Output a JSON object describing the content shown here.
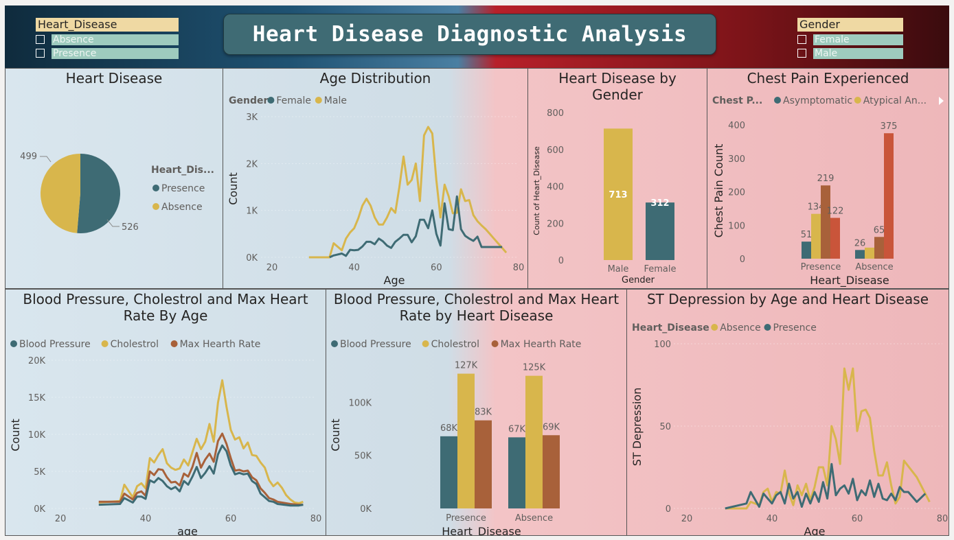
{
  "header": {
    "title": "Heart Disease Diagnostic Analysis"
  },
  "slicers": {
    "heart_disease": {
      "title": "Heart_Disease",
      "options": [
        "Absence",
        "Presence"
      ]
    },
    "gender": {
      "title": "Gender",
      "options": [
        "Female",
        "Male"
      ]
    }
  },
  "colors": {
    "teal": "#3e6b74",
    "gold": "#d8b64c",
    "brown": "#a8613a",
    "orange": "#c9553a"
  },
  "panels": {
    "pie": {
      "title": "Heart Disease"
    },
    "age": {
      "title": "Age Distribution"
    },
    "gender": {
      "title": "Heart Disease by Gender"
    },
    "chest": {
      "title": "Chest Pain Experienced"
    },
    "bpage": {
      "title": "Blood Pressure, Cholestrol and Max Heart Rate By Age"
    },
    "bphd": {
      "title": "Blood Pressure, Cholestrol and Max Heart Rate by Heart Disease"
    },
    "st": {
      "title": "ST Depression by Age and Heart Disease"
    }
  },
  "chart_data": [
    {
      "id": "pie",
      "type": "pie",
      "legend_title": "Heart_Dis...",
      "labels": [
        "Presence",
        "Absence"
      ],
      "values": [
        526,
        499
      ]
    },
    {
      "id": "age",
      "type": "line",
      "legend_title": "Gender",
      "xlabel": "Age",
      "ylabel": "Count",
      "xlim": [
        20,
        80
      ],
      "ylim": [
        0,
        3000
      ],
      "xticks": [
        "20",
        "40",
        "60",
        "80"
      ],
      "yticks": [
        "0K",
        "1K",
        "2K",
        "3K"
      ],
      "series": [
        {
          "name": "Female",
          "x": [
            34,
            35,
            37,
            38,
            39,
            40,
            41,
            42,
            43,
            44,
            45,
            46,
            47,
            48,
            49,
            50,
            51,
            52,
            53,
            54,
            55,
            56,
            57,
            58,
            59,
            60,
            61,
            62,
            63,
            64,
            65,
            66,
            67,
            68,
            69,
            70,
            71,
            74,
            76
          ],
          "y": [
            0,
            40,
            80,
            30,
            160,
            150,
            160,
            230,
            330,
            330,
            280,
            400,
            340,
            250,
            200,
            330,
            400,
            480,
            480,
            320,
            450,
            800,
            800,
            620,
            1000,
            500,
            250,
            1150,
            600,
            580,
            1300,
            600,
            460,
            400,
            350,
            440,
            220,
            220,
            220
          ]
        },
        {
          "name": "Male",
          "x": [
            29,
            34,
            35,
            37,
            38,
            39,
            40,
            41,
            42,
            43,
            44,
            45,
            46,
            47,
            48,
            49,
            50,
            51,
            52,
            53,
            54,
            55,
            56,
            57,
            58,
            59,
            60,
            61,
            62,
            63,
            64,
            65,
            66,
            67,
            68,
            69,
            70,
            71,
            72,
            73,
            74,
            75,
            76,
            77
          ],
          "y": [
            0,
            0,
            300,
            150,
            400,
            530,
            620,
            830,
            1100,
            1250,
            1100,
            850,
            700,
            700,
            850,
            1050,
            950,
            1500,
            2150,
            1550,
            1650,
            2000,
            1200,
            2600,
            2780,
            2640,
            1650,
            850,
            1550,
            1300,
            940,
            950,
            1450,
            1200,
            1220,
            900,
            770,
            680,
            600,
            500,
            400,
            300,
            200,
            100
          ]
        }
      ]
    },
    {
      "id": "gender",
      "type": "bar",
      "xlabel": "Gender",
      "ylabel": "Count of Heart_Disease",
      "ylim": [
        0,
        800
      ],
      "yticks": [
        "0",
        "200",
        "400",
        "600",
        "800"
      ],
      "categories": [
        "Male",
        "Female"
      ],
      "values": [
        713,
        312
      ]
    },
    {
      "id": "chest",
      "type": "bar",
      "legend_title": "Chest P...",
      "xlabel": "Heart_Disease",
      "ylabel": "Chest Pain Count",
      "ylim": [
        0,
        400
      ],
      "yticks": [
        "0",
        "100",
        "200",
        "300",
        "400"
      ],
      "categories": [
        "Presence",
        "Absence"
      ],
      "series": [
        {
          "name": "Asymptomatic",
          "values": [
            51,
            26
          ]
        },
        {
          "name": "Atypical An...",
          "values": [
            134,
            33
          ]
        },
        {
          "name": "",
          "values": [
            219,
            65
          ]
        },
        {
          "name": "",
          "values": [
            122,
            375
          ]
        }
      ],
      "data_labels": [
        [
          "51",
          "134",
          "219",
          "122"
        ],
        [
          "26",
          "",
          "65",
          "375"
        ]
      ]
    },
    {
      "id": "bpage",
      "type": "line",
      "xlabel": "age",
      "ylabel": "Count",
      "xlim": [
        20,
        80
      ],
      "ylim": [
        0,
        20000
      ],
      "xticks": [
        "20",
        "40",
        "60",
        "80"
      ],
      "yticks": [
        "0K",
        "5K",
        "10K",
        "15K",
        "20K"
      ],
      "series": [
        {
          "name": "Blood Pressure",
          "x": [
            29,
            34,
            35,
            37,
            38,
            39,
            40,
            41,
            42,
            43,
            44,
            45,
            46,
            47,
            48,
            49,
            50,
            51,
            52,
            53,
            54,
            55,
            56,
            57,
            58,
            59,
            60,
            61,
            62,
            63,
            64,
            65,
            66,
            67,
            68,
            69,
            70,
            71,
            74,
            76,
            77
          ],
          "y": [
            500,
            600,
            1400,
            800,
            1600,
            1600,
            1300,
            3800,
            3500,
            4100,
            3700,
            3000,
            2600,
            2900,
            2300,
            3700,
            3200,
            4300,
            5600,
            4100,
            4800,
            5700,
            4700,
            7300,
            8500,
            7700,
            5800,
            4600,
            4800,
            4600,
            4700,
            3700,
            3300,
            2000,
            1500,
            1000,
            900,
            600,
            400,
            400,
            500
          ]
        },
        {
          "name": "Cholestrol",
          "x": [
            29,
            34,
            35,
            37,
            38,
            39,
            40,
            41,
            42,
            43,
            44,
            45,
            46,
            47,
            48,
            49,
            50,
            51,
            52,
            53,
            54,
            55,
            56,
            57,
            58,
            59,
            60,
            61,
            62,
            63,
            64,
            65,
            66,
            67,
            68,
            69,
            70,
            71,
            72,
            73,
            74,
            75,
            76,
            77
          ],
          "y": [
            800,
            1000,
            3200,
            1500,
            3000,
            3400,
            2700,
            6800,
            6200,
            7200,
            8000,
            6100,
            5500,
            5200,
            5400,
            6600,
            5800,
            7600,
            9400,
            8000,
            9000,
            11400,
            9000,
            14300,
            17300,
            13700,
            10600,
            9300,
            9600,
            8100,
            8900,
            7200,
            7100,
            6200,
            5500,
            3800,
            3000,
            3500,
            2800,
            1800,
            1200,
            800,
            700,
            900
          ]
        },
        {
          "name": "Max Hearth Rate",
          "x": [
            29,
            34,
            35,
            37,
            38,
            39,
            40,
            41,
            42,
            43,
            44,
            45,
            46,
            47,
            48,
            49,
            50,
            51,
            52,
            53,
            54,
            55,
            56,
            57,
            58,
            59,
            60,
            61,
            62,
            63,
            64,
            65,
            66,
            67,
            68,
            69,
            70,
            71,
            74,
            76,
            77
          ],
          "y": [
            900,
            900,
            2000,
            1200,
            2100,
            2300,
            1700,
            5000,
            4500,
            5300,
            5200,
            4200,
            3500,
            3600,
            3100,
            4700,
            4300,
            5600,
            7500,
            5500,
            6600,
            7400,
            6300,
            9100,
            10100,
            8700,
            6800,
            5100,
            5200,
            5000,
            5100,
            4200,
            3800,
            2700,
            2100,
            1400,
            1200,
            900,
            600,
            500,
            500
          ]
        }
      ]
    },
    {
      "id": "bphd",
      "type": "bar",
      "xlabel": "Heart_Disease",
      "ylabel": "Count",
      "ylim": [
        0,
        150000
      ],
      "yticks": [
        "0K",
        "50K",
        "100K"
      ],
      "categories": [
        "Presence",
        "Absence"
      ],
      "series": [
        {
          "name": "Blood Pressure",
          "values": [
            68000,
            67000
          ]
        },
        {
          "name": "Cholestrol",
          "values": [
            127000,
            125000
          ]
        },
        {
          "name": "Max Hearth Rate",
          "values": [
            83000,
            69000
          ]
        }
      ],
      "data_labels": [
        [
          "68K",
          "127K",
          "83K"
        ],
        [
          "67K",
          "125K",
          "69K"
        ]
      ]
    },
    {
      "id": "st",
      "type": "line",
      "legend_title": "Heart_Disease",
      "xlabel": "Age",
      "ylabel": "ST Depression",
      "xlim": [
        20,
        80
      ],
      "ylim": [
        0,
        100
      ],
      "xticks": [
        "20",
        "40",
        "60",
        "80"
      ],
      "yticks": [
        "0",
        "50",
        "100"
      ],
      "series": [
        {
          "name": "Absence",
          "x": [
            29,
            34,
            35,
            37,
            38,
            39,
            40,
            41,
            42,
            43,
            44,
            45,
            46,
            47,
            48,
            49,
            50,
            51,
            52,
            53,
            54,
            55,
            56,
            57,
            58,
            59,
            60,
            61,
            62,
            63,
            64,
            65,
            66,
            67,
            68,
            69,
            70,
            71,
            74,
            76,
            77
          ],
          "y": [
            0,
            0,
            4,
            2,
            10,
            12,
            4,
            10,
            9,
            23,
            9,
            2,
            14,
            8,
            15,
            5,
            13,
            25,
            25,
            14,
            50,
            42,
            27,
            85,
            72,
            85,
            47,
            59,
            60,
            55,
            35,
            20,
            20,
            28,
            14,
            3,
            7,
            29,
            19,
            9,
            4
          ]
        },
        {
          "name": "Presence",
          "x": [
            29,
            34,
            35,
            37,
            38,
            39,
            40,
            41,
            42,
            43,
            44,
            45,
            46,
            47,
            48,
            49,
            50,
            51,
            52,
            53,
            54,
            55,
            56,
            57,
            58,
            59,
            60,
            61,
            62,
            63,
            64,
            65,
            66,
            67,
            68,
            69,
            70,
            71,
            72,
            74,
            76
          ],
          "y": [
            0,
            3,
            10,
            1,
            9,
            6,
            3,
            8,
            10,
            3,
            15,
            6,
            10,
            1,
            9,
            3,
            10,
            4,
            16,
            6,
            27,
            8,
            12,
            14,
            9,
            18,
            5,
            11,
            8,
            17,
            7,
            15,
            6,
            5,
            9,
            5,
            13,
            10,
            10,
            4,
            9
          ]
        }
      ]
    }
  ]
}
